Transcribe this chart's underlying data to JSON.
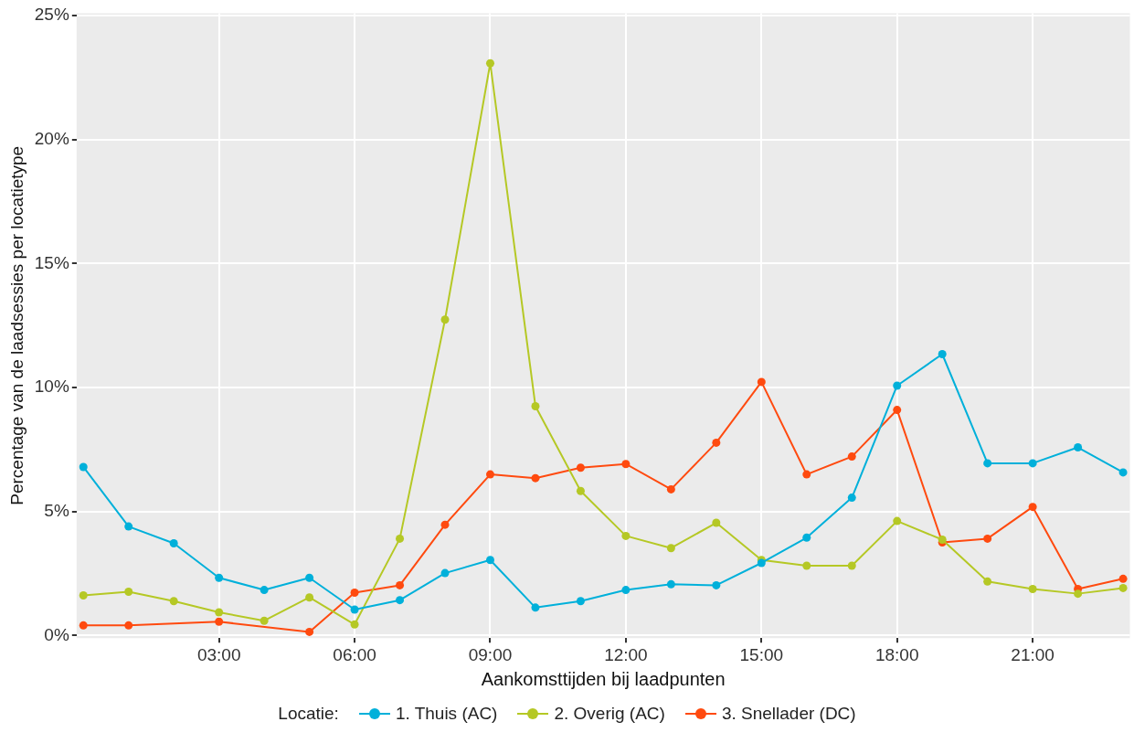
{
  "chart_data": {
    "type": "line",
    "xlabel": "Aankomsttijden bij laadpunten",
    "ylabel": "Percentage van de laadsessies per locatietype",
    "legend_title": "Locatie:",
    "legend": "bottom",
    "grid": true,
    "marker": "circle",
    "line_style": "solid",
    "x": [
      0,
      1,
      2,
      3,
      4,
      5,
      6,
      7,
      8,
      9,
      10,
      11,
      12,
      13,
      14,
      15,
      16,
      17,
      18,
      19,
      20,
      21,
      22,
      23
    ],
    "xlim": [
      -0.15,
      23.15
    ],
    "xticks": [
      {
        "value": 3,
        "label": "03:00"
      },
      {
        "value": 6,
        "label": "06:00"
      },
      {
        "value": 9,
        "label": "09:00"
      },
      {
        "value": 12,
        "label": "12:00"
      },
      {
        "value": 15,
        "label": "15:00"
      },
      {
        "value": 18,
        "label": "18:00"
      },
      {
        "value": 21,
        "label": "21:00"
      }
    ],
    "ylim": [
      -0.1,
      25.1
    ],
    "yticks": [
      {
        "value": 0,
        "label": "0%"
      },
      {
        "value": 5,
        "label": "5%"
      },
      {
        "value": 10,
        "label": "10%"
      },
      {
        "value": 15,
        "label": "15%"
      },
      {
        "value": 20,
        "label": "20%"
      },
      {
        "value": 25,
        "label": "25%"
      }
    ],
    "series": [
      {
        "name": "1. Thuis (AC)",
        "color": "#00b0da",
        "values": [
          6.8,
          4.4,
          3.72,
          2.33,
          1.84,
          2.33,
          1.05,
          1.43,
          2.52,
          3.05,
          1.13,
          1.39,
          1.84,
          2.07,
          2.03,
          2.93,
          3.95,
          5.56,
          10.08,
          11.35,
          6.95,
          6.95,
          7.59,
          6.58
        ]
      },
      {
        "name": "2. Overig (AC)",
        "color": "#b5c825",
        "values": [
          1.62,
          1.77,
          1.39,
          0.94,
          0.6,
          1.54,
          0.45,
          3.91,
          12.74,
          23.08,
          9.25,
          5.83,
          4.02,
          3.53,
          4.55,
          3.05,
          2.82,
          2.82,
          4.62,
          3.87,
          2.18,
          1.88,
          1.69,
          1.92
        ]
      },
      {
        "name": "3. Snellader (DC)",
        "color": "#ff4a0f",
        "x": [
          0,
          1,
          3,
          5,
          6,
          7,
          8,
          9,
          10,
          11,
          12,
          13,
          14,
          15,
          16,
          17,
          18,
          19,
          20,
          21,
          22,
          23
        ],
        "values": [
          0.41,
          0.41,
          0.56,
          0.15,
          1.73,
          2.03,
          4.47,
          6.5,
          6.35,
          6.77,
          6.92,
          5.9,
          7.78,
          10.23,
          6.5,
          7.22,
          9.1,
          3.76,
          3.91,
          5.19,
          1.88,
          2.29
        ]
      }
    ]
  }
}
